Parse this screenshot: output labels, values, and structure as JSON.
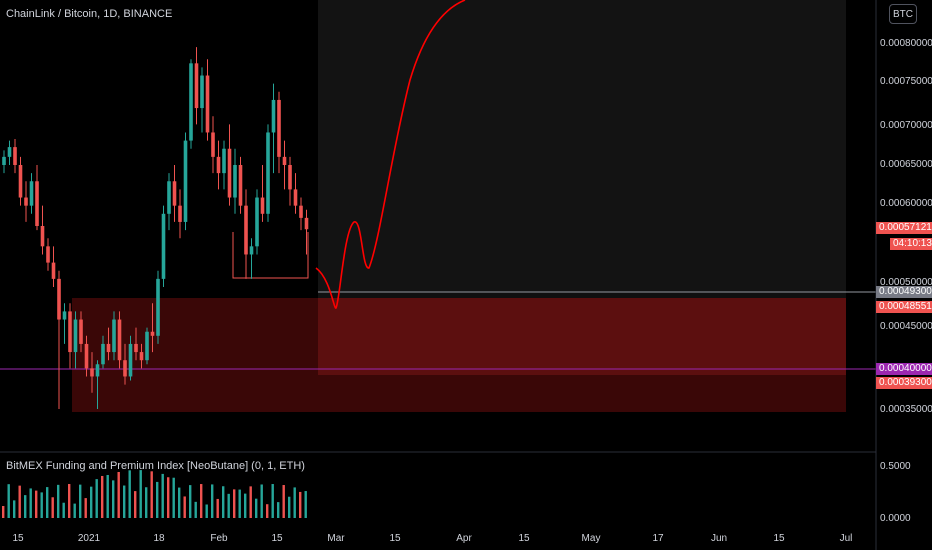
{
  "header": {
    "title": "ChainLink / Bitcoin, 1D, BINANCE",
    "currency_button": "BTC"
  },
  "indicator": {
    "title": "BitMEX Funding and Premium Index [NeoButane] (0, 1, ETH)",
    "ticks": [
      "0.5000",
      "0.0000"
    ]
  },
  "y_axis": {
    "ticks": [
      "0.00080000",
      "0.00075000",
      "0.00070000",
      "0.00065000",
      "0.00060000",
      "0.00050000",
      "0.00045000",
      "0.00035000"
    ]
  },
  "x_axis": {
    "ticks": [
      "15",
      "2021",
      "18",
      "Feb",
      "15",
      "Mar",
      "15",
      "Apr",
      "15",
      "May",
      "17",
      "Jun",
      "15",
      "Jul"
    ]
  },
  "price_tags": {
    "last_price": "0.00057121",
    "countdown": "04:10:13",
    "grey_line": "0.00049300",
    "zone_top": "0.00048551",
    "purple_line": "0.00040000",
    "zone_bottom": "0.00039300"
  },
  "colors": {
    "up": "#26a69a",
    "down": "#ef5350",
    "zone": "#5c0f0f",
    "purple": "#9c27b0",
    "projection": "#ff0000"
  },
  "chart_data": {
    "type": "candlestick",
    "candles": [
      [
        0.00065,
        0.000668,
        0.00064,
        0.00066
      ],
      [
        0.00066,
        0.00068,
        0.00065,
        0.000672
      ],
      [
        0.000672,
        0.000682,
        0.00064,
        0.00065
      ],
      [
        0.00065,
        0.00066,
        0.0006,
        0.00061
      ],
      [
        0.00061,
        0.00063,
        0.00058,
        0.0006
      ],
      [
        0.0006,
        0.00064,
        0.00059,
        0.00063
      ],
      [
        0.00063,
        0.00065,
        0.00057,
        0.000575
      ],
      [
        0.000575,
        0.0006,
        0.00054,
        0.00055
      ],
      [
        0.00055,
        0.00056,
        0.00052,
        0.00053
      ],
      [
        0.00053,
        0.00055,
        0.0005,
        0.00051
      ],
      [
        0.00051,
        0.00052,
        0.00035,
        0.00046
      ],
      [
        0.00046,
        0.00048,
        0.00043,
        0.00047
      ],
      [
        0.00047,
        0.00048,
        0.0004,
        0.00042
      ],
      [
        0.00042,
        0.00047,
        0.0004,
        0.00046
      ],
      [
        0.00046,
        0.00047,
        0.00042,
        0.00043
      ],
      [
        0.00043,
        0.00044,
        0.00039,
        0.0004
      ],
      [
        0.0004,
        0.00042,
        0.00037,
        0.00039
      ],
      [
        0.00039,
        0.00041,
        0.00035,
        0.000405
      ],
      [
        0.000405,
        0.00044,
        0.0004,
        0.00043
      ],
      [
        0.00043,
        0.00045,
        0.00041,
        0.00042
      ],
      [
        0.00042,
        0.00047,
        0.00041,
        0.00046
      ],
      [
        0.00046,
        0.00047,
        0.0004,
        0.00041
      ],
      [
        0.00041,
        0.00043,
        0.00038,
        0.00039
      ],
      [
        0.00039,
        0.00044,
        0.000385,
        0.00043
      ],
      [
        0.00043,
        0.00045,
        0.00041,
        0.00042
      ],
      [
        0.00042,
        0.00043,
        0.0004,
        0.00041
      ],
      [
        0.00041,
        0.00045,
        0.000405,
        0.000445
      ],
      [
        0.000445,
        0.00048,
        0.00042,
        0.00044
      ],
      [
        0.00044,
        0.00052,
        0.00043,
        0.00051
      ],
      [
        0.00051,
        0.0006,
        0.0005,
        0.00059
      ],
      [
        0.00059,
        0.00064,
        0.00057,
        0.00063
      ],
      [
        0.00063,
        0.00065,
        0.00058,
        0.0006
      ],
      [
        0.0006,
        0.00062,
        0.00056,
        0.00058
      ],
      [
        0.00058,
        0.00069,
        0.00057,
        0.00068
      ],
      [
        0.00068,
        0.00078,
        0.00067,
        0.000775
      ],
      [
        0.000775,
        0.000795,
        0.0007,
        0.00072
      ],
      [
        0.00072,
        0.00077,
        0.00069,
        0.00076
      ],
      [
        0.00076,
        0.00078,
        0.00068,
        0.00069
      ],
      [
        0.00069,
        0.00071,
        0.00064,
        0.00066
      ],
      [
        0.00066,
        0.00068,
        0.00062,
        0.00064
      ],
      [
        0.00064,
        0.00068,
        0.00062,
        0.00067
      ],
      [
        0.00067,
        0.0007,
        0.0006,
        0.00061
      ],
      [
        0.00061,
        0.00067,
        0.00059,
        0.00065
      ],
      [
        0.00065,
        0.00066,
        0.00059,
        0.0006
      ],
      [
        0.0006,
        0.00062,
        0.00051,
        0.00054
      ],
      [
        0.00054,
        0.00056,
        0.00051,
        0.00055
      ],
      [
        0.00055,
        0.00062,
        0.00054,
        0.00061
      ],
      [
        0.00061,
        0.00065,
        0.00058,
        0.00059
      ],
      [
        0.00059,
        0.0007,
        0.00058,
        0.00069
      ],
      [
        0.00069,
        0.00075,
        0.00064,
        0.00073
      ],
      [
        0.00073,
        0.00074,
        0.00064,
        0.00066
      ],
      [
        0.00066,
        0.00068,
        0.00062,
        0.00065
      ],
      [
        0.00065,
        0.00066,
        0.0006,
        0.00062
      ],
      [
        0.00062,
        0.00064,
        0.00059,
        0.0006
      ],
      [
        0.0006,
        0.00061,
        0.00057,
        0.000585
      ],
      [
        0.000585,
        0.000595,
        0.00054,
        0.000571
      ]
    ]
  }
}
